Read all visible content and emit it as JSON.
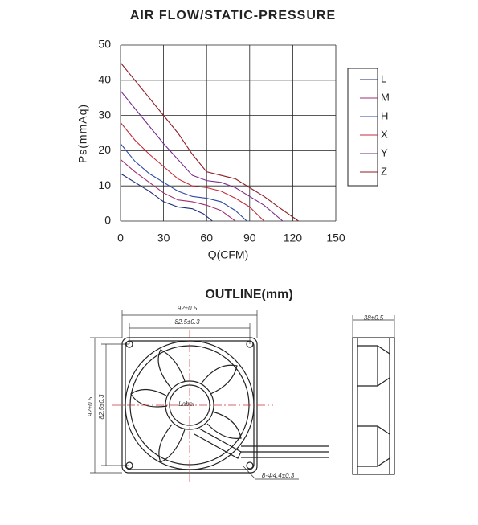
{
  "chart_data": {
    "type": "line",
    "title": "AIR FLOW/STATIC-PRESSURE",
    "x_label": "Q(CFM)",
    "y_label": "Ps(mmAq)",
    "xlim": [
      0,
      150
    ],
    "xticks": [
      0,
      30,
      60,
      90,
      120,
      150
    ],
    "ylim": [
      0,
      50
    ],
    "yticks": [
      0,
      10,
      20,
      30,
      40,
      50
    ],
    "grid": true,
    "series": [
      {
        "name": "L",
        "color": "#1e2a78",
        "x": [
          0,
          10,
          20,
          30,
          40,
          50,
          58,
          64
        ],
        "values": [
          13.5,
          11,
          8.5,
          5.5,
          4,
          3.5,
          2,
          0
        ]
      },
      {
        "name": "M",
        "color": "#a0306e",
        "x": [
          0,
          10,
          20,
          30,
          40,
          50,
          60,
          70,
          80
        ],
        "values": [
          17.5,
          14,
          11,
          8,
          6,
          5.5,
          4.5,
          3,
          0
        ]
      },
      {
        "name": "H",
        "color": "#2c48a8",
        "x": [
          0,
          10,
          20,
          30,
          40,
          50,
          60,
          70,
          80,
          88
        ],
        "values": [
          22,
          17,
          13.5,
          11,
          8.5,
          7,
          6.5,
          5.5,
          3,
          0
        ]
      },
      {
        "name": "X",
        "color": "#c8283a",
        "x": [
          0,
          10,
          20,
          30,
          40,
          50,
          60,
          70,
          80,
          90,
          100
        ],
        "values": [
          28,
          23,
          19,
          15.5,
          12,
          10,
          9.5,
          8.5,
          6.5,
          4,
          0
        ]
      },
      {
        "name": "Y",
        "color": "#7a2a8e",
        "x": [
          0,
          10,
          20,
          30,
          40,
          50,
          60,
          70,
          80,
          90,
          100,
          113
        ],
        "values": [
          37,
          32,
          27,
          22,
          17.5,
          13,
          11.5,
          11,
          9.5,
          7,
          4.5,
          0
        ]
      },
      {
        "name": "Z",
        "color": "#8e1c24",
        "x": [
          0,
          10,
          20,
          30,
          40,
          50,
          60,
          70,
          80,
          90,
          100,
          110,
          124
        ],
        "values": [
          45,
          40,
          35,
          30,
          25,
          19,
          14,
          13,
          12,
          9.5,
          7,
          4,
          0
        ]
      }
    ]
  },
  "outline": {
    "title": "OUTLINE(mm)",
    "width": "92±0.5",
    "hole_span": "82.5±0.3",
    "height": "92±0.5",
    "hole_span_v": "82.5±0.3",
    "label": "Label",
    "holes": "8-Φ4.4±0.3",
    "depth": "38±0.5"
  }
}
